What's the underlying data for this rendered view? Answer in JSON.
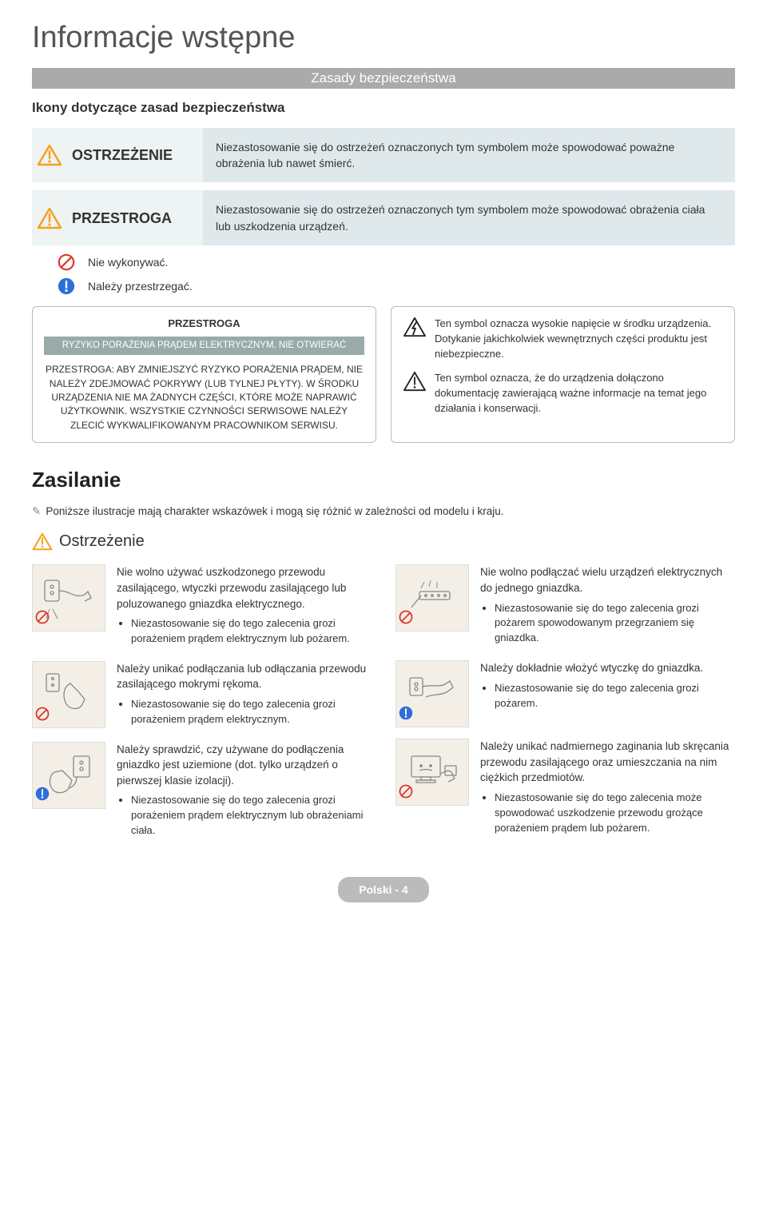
{
  "page_title": "Informacje wstępne",
  "gray_bar": "Zasady bezpieczeństwa",
  "subhead": "Ikony dotyczące zasad bezpieczeństwa",
  "alerts": {
    "warning": {
      "label": "OSTRZEŻENIE",
      "desc": "Niezastosowanie się do ostrzeżeń oznaczonych tym symbolem może spowodować poważne obrażenia lub nawet śmierć."
    },
    "caution": {
      "label": "PRZESTROGA",
      "desc": "Niezastosowanie się do ostrzeżeń oznaczonych tym symbolem może spowodować obrażenia ciała lub uszkodzenia urządzeń."
    }
  },
  "icon_lines": {
    "prohibit": "Nie wykonywać.",
    "must": "Należy przestrzegać."
  },
  "box1": {
    "header": "PRZESTROGA",
    "band": "RYZYKO PORAŻENIA PRĄDEM ELEKTRYCZNYM. NIE OTWIERAĆ",
    "body": "PRZESTROGA: ABY ZMNIEJSZYĆ RYZYKO PORAŻENIA PRĄDEM, NIE NALEŻY ZDEJMOWAĆ POKRYWY (LUB TYLNEJ PŁYTY). W ŚRODKU URZĄDZENIA NIE MA ŻADNYCH CZĘŚCI, KTÓRE MOŻE NAPRAWIĆ UŻYTKOWNIK. WSZYSTKIE CZYNNOŚCI SERWISOWE NALEŻY ZLECIĆ WYKWALIFIKOWANYM PRACOWNIKOM SERWISU."
  },
  "box2": {
    "hv": "Ten symbol oznacza wysokie napięcie w środku urządzenia. Dotykanie jakichkolwiek wewnętrznych części produktu jest niebezpieczne.",
    "doc": "Ten symbol oznacza, że do urządzenia dołączono dokumentację zawierającą ważne informacje na temat jego działania i konserwacji."
  },
  "zasilanie": "Zasilanie",
  "note": "Poniższe ilustracje mają charakter wskazówek i mogą się różnić w zależności od modelu i kraju.",
  "ostrzezenie": "Ostrzeżenie",
  "left_col": [
    {
      "badge": "prohibit",
      "main": "Nie wolno używać uszkodzonego przewodu zasilającego, wtyczki przewodu zasilającego lub poluzowanego gniazdka elektrycznego.",
      "bullets": [
        "Niezastosowanie się do tego zalecenia grozi porażeniem prądem elektrycznym lub pożarem."
      ]
    },
    {
      "badge": "prohibit",
      "main": "Należy unikać podłączania lub odłączania przewodu zasilającego mokrymi rękoma.",
      "bullets": [
        "Niezastosowanie się do tego zalecenia grozi porażeniem prądem elektrycznym."
      ]
    },
    {
      "badge": "must",
      "main": "Należy sprawdzić, czy używane do podłączenia gniazdko jest uziemione (dot. tylko urządzeń o pierwszej klasie izolacji).",
      "bullets": [
        "Niezastosowanie się do tego zalecenia grozi porażeniem prądem elektrycznym lub obrażeniami ciała."
      ]
    }
  ],
  "right_col": [
    {
      "badge": "prohibit",
      "main": "Nie wolno podłączać wielu urządzeń elektrycznych do jednego gniazdka.",
      "bullets": [
        "Niezastosowanie się do tego zalecenia grozi pożarem spowodowanym przegrzaniem się gniazdka."
      ]
    },
    {
      "badge": "must",
      "main": "Należy dokładnie włożyć wtyczkę do gniazdka.",
      "bullets": [
        "Niezastosowanie się do tego zalecenia grozi pożarem."
      ]
    },
    {
      "badge": "prohibit",
      "main": "Należy unikać nadmiernego zaginania lub skręcania przewodu zasilającego oraz umieszczania na nim ciężkich przedmiotów.",
      "bullets": [
        "Niezastosowanie się do tego zalecenia może spowodować uszkodzenie przewodu grożące porażeniem prądem lub pożarem."
      ]
    }
  ],
  "footer": "Polski - 4",
  "colors": {
    "warn_triangle": "#f5a21b",
    "gray_bar": "#aaaaaa",
    "desc_bg": "#dfe9ec",
    "thumb_bg": "#f4efe6",
    "prohibit": "#d93a2b",
    "must": "#2b6fd9"
  }
}
